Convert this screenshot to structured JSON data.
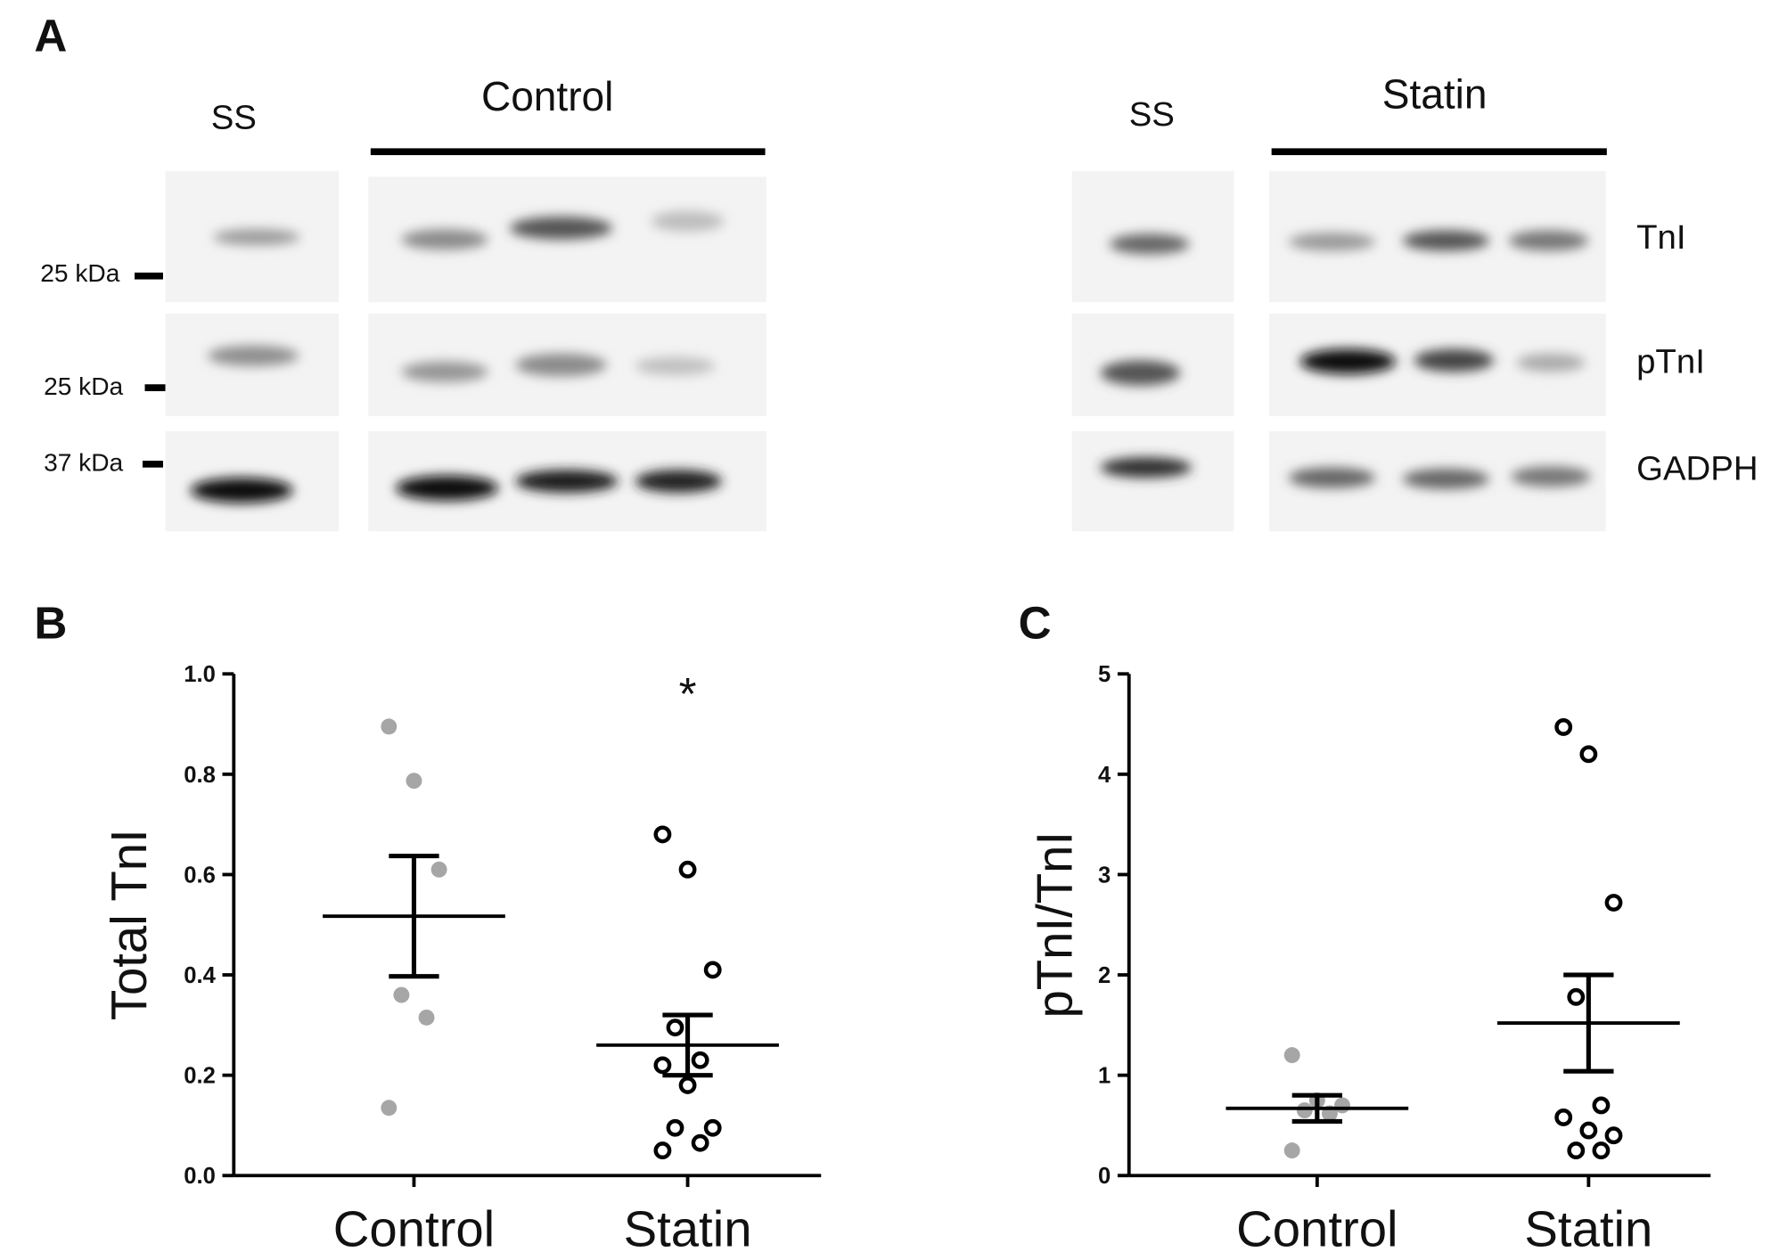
{
  "blot": {
    "panel_label": "A",
    "groups": [
      {
        "ss": "SS",
        "title": "Control"
      },
      {
        "ss": "SS",
        "title": "Statin"
      }
    ],
    "rows": [
      "TnI",
      "pTnI",
      "GADPH"
    ],
    "markers": [
      "25 kDa",
      "25 kDa",
      "37 kDa"
    ]
  },
  "chart_data": [
    {
      "type": "scatter",
      "panel_label": "B",
      "y_label": "Total TnI",
      "annotation": "*",
      "categories": [
        "Control",
        "Statin"
      ],
      "points": [
        [
          0.895,
          0.787,
          0.61,
          0.36,
          0.315,
          0.135
        ],
        [
          0.68,
          0.61,
          0.41,
          0.295,
          0.23,
          0.22,
          0.18,
          0.095,
          0.095,
          0.065,
          0.05
        ]
      ],
      "means": [
        0.517,
        0.26
      ],
      "sem": [
        0.12,
        0.06
      ],
      "colors": [
        "#a6a6a6",
        "#000000"
      ],
      "markers": [
        "filled",
        "open"
      ],
      "ylim": [
        0,
        1
      ],
      "yticks": [
        {
          "value": 0,
          "label": "0.0"
        },
        {
          "value": 0.2,
          "label": "0.2"
        },
        {
          "value": 0.4,
          "label": "0.4"
        },
        {
          "value": 0.6,
          "label": "0.6"
        },
        {
          "value": 0.8,
          "label": "0.8"
        },
        {
          "value": 1,
          "label": "1.0"
        }
      ]
    },
    {
      "type": "scatter",
      "panel_label": "C",
      "y_label": "pTnI/TnI",
      "categories": [
        "Control",
        "Statin"
      ],
      "points": [
        [
          1.2,
          0.75,
          0.7,
          0.65,
          0.62,
          0.25
        ],
        [
          4.47,
          4.2,
          2.72,
          1.78,
          0.7,
          0.58,
          0.45,
          0.4,
          0.25,
          0.25
        ]
      ],
      "means": [
        0.67,
        1.52
      ],
      "sem": [
        0.13,
        0.48
      ],
      "colors": [
        "#a6a6a6",
        "#000000"
      ],
      "markers": [
        "filled",
        "open"
      ],
      "ylim": [
        0,
        5
      ],
      "yticks": [
        0,
        1,
        2,
        3,
        4,
        5
      ]
    }
  ]
}
